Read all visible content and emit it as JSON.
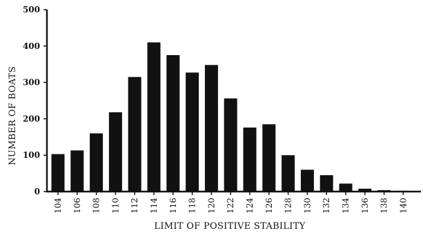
{
  "chart_data": {
    "type": "bar",
    "title": "",
    "xlabel": "LIMIT OF POSITIVE STABILITY",
    "ylabel": "NUMBER OF BOATS",
    "categories": [
      "104",
      "106",
      "108",
      "110",
      "112",
      "114",
      "116",
      "118",
      "120",
      "122",
      "124",
      "126",
      "128",
      "130",
      "132",
      "134",
      "136",
      "138",
      "140"
    ],
    "values": [
      103,
      113,
      160,
      218,
      315,
      410,
      375,
      327,
      348,
      256,
      176,
      185,
      100,
      60,
      45,
      22,
      8,
      4,
      2
    ],
    "ylim": [
      0,
      500
    ],
    "yticks": [
      "0",
      "100",
      "200",
      "300",
      "400",
      "500"
    ],
    "grid": false,
    "legend": "none"
  }
}
